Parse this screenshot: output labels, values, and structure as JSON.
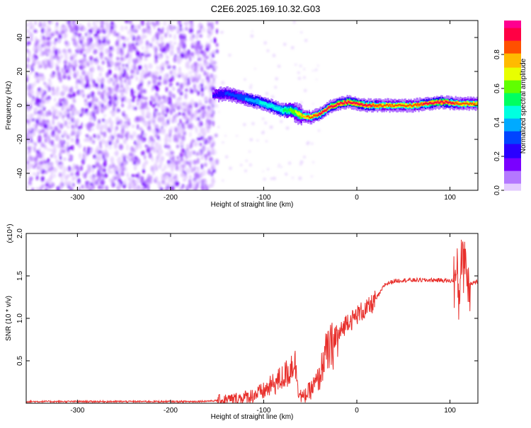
{
  "title": "C2E6.2025.169.10.32.G03",
  "chart_data": [
    {
      "type": "heatmap",
      "name": "spectrogram",
      "xlabel": "Height of straight line (km)",
      "ylabel": "Frequency (Hz)",
      "xlim": [
        -355,
        130
      ],
      "ylim": [
        -50,
        50
      ],
      "xticks": [
        -300,
        -200,
        -100,
        0,
        100
      ],
      "xtick_labels": [
        "-300",
        "-200",
        "-100",
        "0",
        "100"
      ],
      "yticks": [
        -40,
        -20,
        0,
        20,
        40
      ],
      "ytick_labels": [
        "-40",
        "-20",
        "0",
        "20",
        "40"
      ],
      "colorbar": {
        "label": "Normalized spectral amplitude",
        "range": [
          0,
          1
        ],
        "ticks": [
          0.0,
          0.2,
          0.4,
          0.6,
          0.8
        ],
        "tick_labels": [
          "0.0",
          "0.2",
          "0.4",
          "0.6",
          "0.8"
        ],
        "colors": [
          "#e4ccff",
          "#b478ff",
          "#7a00ff",
          "#2a00ff",
          "#0044ff",
          "#00aaff",
          "#00ffe0",
          "#00ff60",
          "#60ff00",
          "#e8ff00",
          "#ffbb00",
          "#ff5000",
          "#ff0044",
          "#ff0090"
        ]
      },
      "noise_region": {
        "x_range": [
          -355,
          -150
        ],
        "freq_range": [
          -50,
          50
        ],
        "level": 0.15
      },
      "signal_ridge": {
        "x": [
          -155,
          -140,
          -120,
          -100,
          -80,
          -70,
          -60,
          -50,
          -40,
          -30,
          -20,
          -10,
          0,
          10,
          30,
          60,
          90,
          110,
          130
        ],
        "freq": [
          6,
          7,
          4,
          1,
          -3,
          -3,
          -6,
          -7,
          -5,
          -1,
          1,
          2,
          1,
          0,
          0,
          0,
          2,
          1,
          1
        ],
        "amplitude": [
          0.2,
          0.28,
          0.35,
          0.45,
          0.5,
          0.6,
          0.75,
          0.85,
          0.9,
          0.9,
          0.95,
          0.95,
          0.92,
          0.9,
          0.85,
          0.85,
          0.95,
          0.85,
          0.8
        ]
      }
    },
    {
      "type": "line",
      "name": "snr",
      "xlabel": "Height of straight line (km)",
      "ylabel": "SNR (10 * v/v)",
      "yscale_label": "(x10⁴)",
      "xlim": [
        -355,
        130
      ],
      "ylim": [
        0,
        2.0
      ],
      "xticks": [
        -300,
        -200,
        -100,
        0,
        100
      ],
      "xtick_labels": [
        "-300",
        "-200",
        "-100",
        "0",
        "100"
      ],
      "yticks": [
        0.5,
        1.0,
        1.5,
        2.0
      ],
      "ytick_labels": [
        "0.5",
        "1.0",
        "1.5",
        "2.0"
      ],
      "color": "#e8302c",
      "series": [
        {
          "name": "SNR",
          "x": [
            -355,
            -300,
            -250,
            -200,
            -175,
            -150,
            -130,
            -115,
            -100,
            -90,
            -80,
            -72,
            -68,
            -65,
            -62,
            -58,
            -55,
            -50,
            -45,
            -40,
            -35,
            -30,
            -25,
            -20,
            -15,
            -10,
            -5,
            0,
            5,
            10,
            15,
            20,
            25,
            30,
            40,
            50,
            60,
            70,
            80,
            90,
            100,
            105,
            108,
            110,
            112,
            114,
            116,
            118,
            120,
            125,
            130
          ],
          "y": [
            0.02,
            0.02,
            0.02,
            0.02,
            0.02,
            0.03,
            0.05,
            0.08,
            0.14,
            0.22,
            0.3,
            0.38,
            0.52,
            0.4,
            0.12,
            0.06,
            0.1,
            0.15,
            0.22,
            0.3,
            0.55,
            0.62,
            0.7,
            0.78,
            0.88,
            0.98,
            0.98,
            1.04,
            1.08,
            1.1,
            1.15,
            1.22,
            1.3,
            1.4,
            1.44,
            1.45,
            1.45,
            1.45,
            1.45,
            1.45,
            1.44,
            1.45,
            1.5,
            1.15,
            1.9,
            1.55,
            1.85,
            1.5,
            1.42,
            1.42,
            1.43
          ]
        }
      ]
    }
  ]
}
